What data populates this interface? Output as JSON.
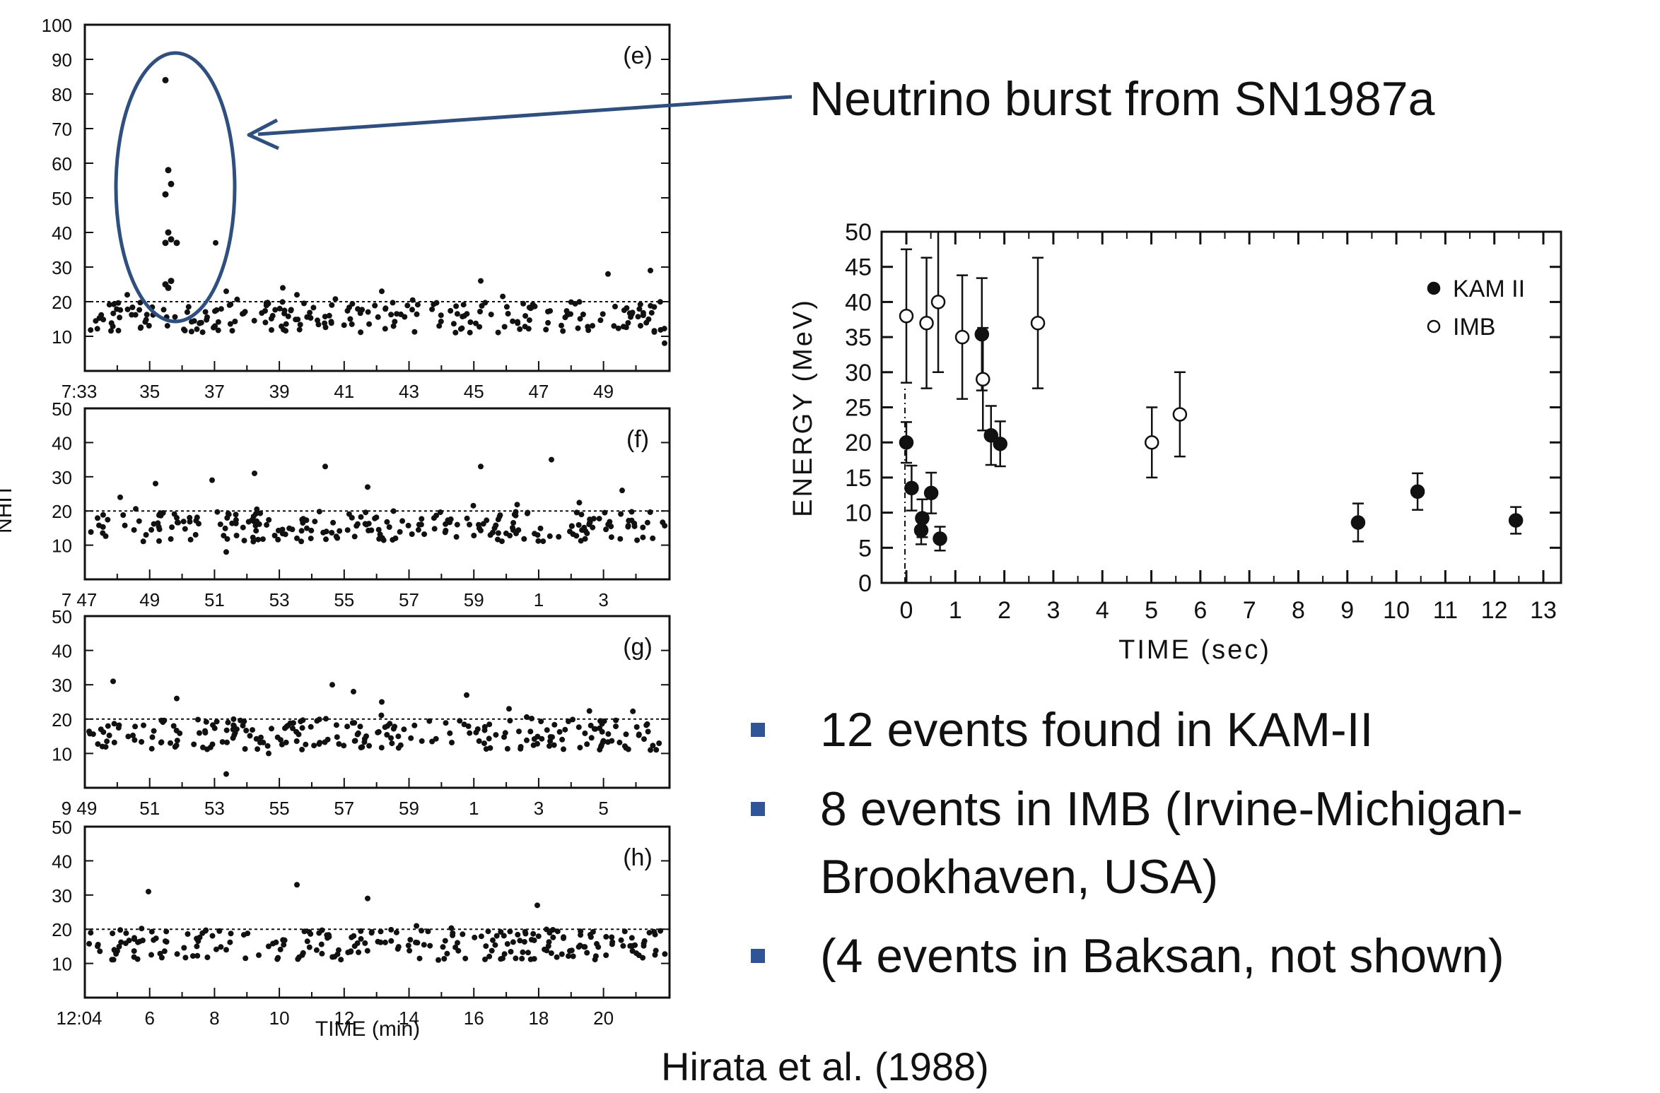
{
  "annotation": {
    "callout_text": "Neutrino burst from SN1987a"
  },
  "bullets": [
    "12 events found in KAM-II",
    "8 events in IMB (Irvine-Michigan-Brookhaven, USA)",
    "(4 events in Baksan, not shown)"
  ],
  "citation": "Hirata et al. (1988)",
  "colors": {
    "ellipse": "#2f4f7f",
    "arrow": "#2f4f7f",
    "bullet": "#2f5597",
    "ink": "#111111"
  },
  "chart_data": [
    {
      "type": "scatter",
      "ylabel": "NHIT",
      "xlabel": "TIME (min)",
      "panels": [
        {
          "label": "(e)",
          "threshold": 20,
          "y_ticks": [
            "100",
            "90",
            "80",
            "70",
            "60",
            "50",
            "40",
            "30",
            "20",
            "10"
          ],
          "x_ticks": [
            "7:33",
            "35",
            "37",
            "39",
            "41",
            "43",
            "45",
            "47",
            "49"
          ],
          "burst_points": [
            84,
            58,
            54,
            51,
            40,
            38,
            37,
            37,
            26,
            25,
            24
          ],
          "note": "burst near 35.5 min"
        },
        {
          "label": "(f)",
          "threshold": 20,
          "y_ticks": [
            "50",
            "40",
            "30",
            "20",
            "10"
          ],
          "x_ticks": [
            "7 47",
            "49",
            "51",
            "53",
            "55",
            "57",
            "59",
            "1",
            "3"
          ]
        },
        {
          "label": "(g)",
          "threshold": 20,
          "y_ticks": [
            "50",
            "40",
            "30",
            "20",
            "10"
          ],
          "x_ticks": [
            "9 49",
            "51",
            "53",
            "55",
            "57",
            "59",
            "1",
            "3",
            "5"
          ]
        },
        {
          "label": "(h)",
          "threshold": 20,
          "y_ticks": [
            "50",
            "40",
            "30",
            "20",
            "10"
          ],
          "x_ticks": [
            "12:04",
            "6",
            "8",
            "10",
            "12",
            "14",
            "16",
            "18",
            "20"
          ]
        }
      ]
    },
    {
      "type": "scatter",
      "xlabel": "TIME (sec)",
      "ylabel": "ENERGY (MeV)",
      "xlim": [
        0,
        13
      ],
      "ylim": [
        0,
        50
      ],
      "x_ticks": [
        0,
        1,
        2,
        3,
        4,
        5,
        6,
        7,
        8,
        9,
        10,
        11,
        12,
        13
      ],
      "y_ticks": [
        0,
        5,
        10,
        15,
        20,
        25,
        30,
        35,
        40,
        45,
        50
      ],
      "legend_position": "top-right",
      "series": [
        {
          "name": "KAM II",
          "marker": "filled-circle",
          "points": [
            {
              "t": 0.0,
              "e": 20.0,
              "err": 2.9
            },
            {
              "t": 0.107,
              "e": 13.5,
              "err": 3.2
            },
            {
              "t": 0.303,
              "e": 7.5,
              "err": 2.0
            },
            {
              "t": 0.324,
              "e": 9.2,
              "err": 2.7
            },
            {
              "t": 0.507,
              "e": 12.8,
              "err": 2.9
            },
            {
              "t": 0.686,
              "e": 6.3,
              "err": 1.7
            },
            {
              "t": 1.541,
              "e": 35.4,
              "err": 8.0
            },
            {
              "t": 1.728,
              "e": 21.0,
              "err": 4.2
            },
            {
              "t": 1.915,
              "e": 19.8,
              "err": 3.2
            },
            {
              "t": 9.219,
              "e": 8.6,
              "err": 2.7
            },
            {
              "t": 10.433,
              "e": 13.0,
              "err": 2.6
            },
            {
              "t": 12.439,
              "e": 8.9,
              "err": 1.9
            }
          ]
        },
        {
          "name": "IMB",
          "marker": "open-circle",
          "points": [
            {
              "t": 0.0,
              "e": 38.0,
              "err": 9.5
            },
            {
              "t": 0.412,
              "e": 37.0,
              "err": 9.3
            },
            {
              "t": 0.65,
              "e": 40.0,
              "err": 10.0
            },
            {
              "t": 1.141,
              "e": 35.0,
              "err": 8.8
            },
            {
              "t": 1.562,
              "e": 29.0,
              "err": 7.3
            },
            {
              "t": 2.684,
              "e": 37.0,
              "err": 9.3
            },
            {
              "t": 5.01,
              "e": 20.0,
              "err": 5.0
            },
            {
              "t": 5.582,
              "e": 24.0,
              "err": 6.0
            }
          ]
        }
      ]
    }
  ]
}
